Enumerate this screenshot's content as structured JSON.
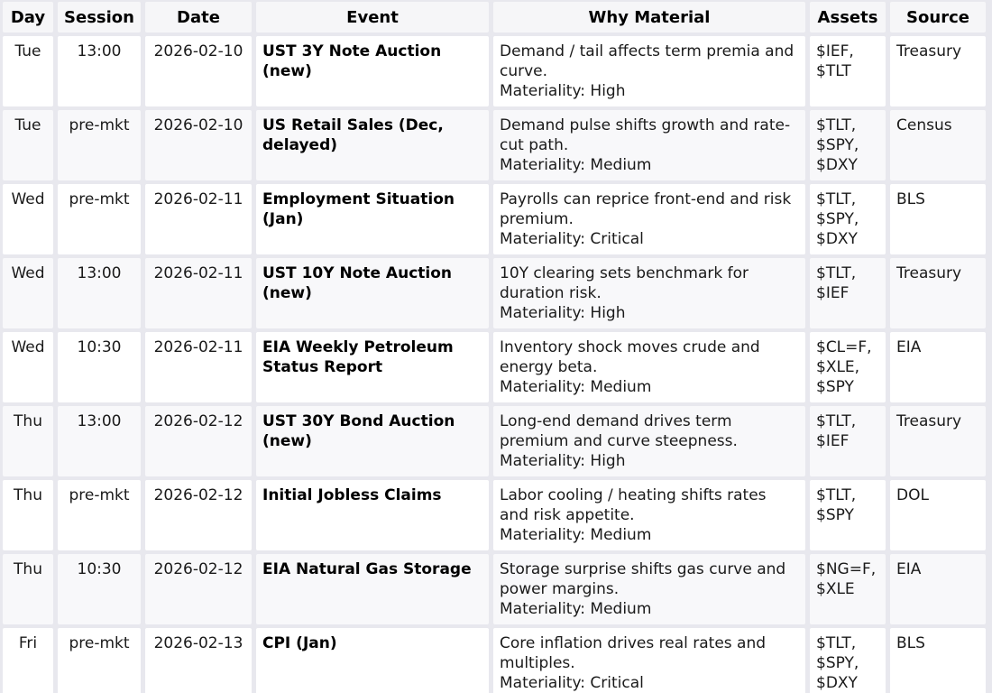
{
  "colors": {
    "page_gap_background": "#e8e8ee",
    "header_cell_background": "#f6f6f8",
    "row_background": "#ffffff",
    "row_alt_background": "#f8f8fa",
    "text": "#1a1a1a"
  },
  "table": {
    "columns": [
      "Day",
      "Session",
      "Date",
      "Event",
      "Why Material",
      "Assets",
      "Source"
    ],
    "rows": [
      {
        "day": "Tue",
        "session": "13:00",
        "date": "2026-02-10",
        "event": "UST 3Y Note Auction (new)",
        "why": "Demand / tail affects term premia and curve.",
        "materiality": "Materiality: High",
        "assets": [
          "$IEF",
          "$TLT"
        ],
        "source": "Treasury"
      },
      {
        "day": "Tue",
        "session": "pre-mkt",
        "date": "2026-02-10",
        "event": "US Retail Sales (Dec, delayed)",
        "why": "Demand pulse shifts growth and rate-cut path.",
        "materiality": "Materiality: Medium",
        "assets": [
          "$TLT",
          "$SPY",
          "$DXY"
        ],
        "source": "Census"
      },
      {
        "day": "Wed",
        "session": "pre-mkt",
        "date": "2026-02-11",
        "event": "Employment Situation (Jan)",
        "why": "Payrolls can reprice front-end and risk premium.",
        "materiality": "Materiality: Critical",
        "assets": [
          "$TLT",
          "$SPY",
          "$DXY"
        ],
        "source": "BLS"
      },
      {
        "day": "Wed",
        "session": "13:00",
        "date": "2026-02-11",
        "event": "UST 10Y Note Auction (new)",
        "why": "10Y clearing sets benchmark for duration risk.",
        "materiality": "Materiality: High",
        "assets": [
          "$TLT",
          "$IEF"
        ],
        "source": "Treasury"
      },
      {
        "day": "Wed",
        "session": "10:30",
        "date": "2026-02-11",
        "event": "EIA Weekly Petroleum Status Report",
        "why": "Inventory shock moves crude and energy beta.",
        "materiality": "Materiality: Medium",
        "assets": [
          "$CL=F",
          "$XLE",
          "$SPY"
        ],
        "source": "EIA"
      },
      {
        "day": "Thu",
        "session": "13:00",
        "date": "2026-02-12",
        "event": "UST 30Y Bond Auction (new)",
        "why": "Long-end demand drives term premium and curve steepness.",
        "materiality": "Materiality: High",
        "assets": [
          "$TLT",
          "$IEF"
        ],
        "source": "Treasury"
      },
      {
        "day": "Thu",
        "session": "pre-mkt",
        "date": "2026-02-12",
        "event": "Initial Jobless Claims",
        "why": "Labor cooling / heating shifts rates and risk appetite.",
        "materiality": "Materiality: Medium",
        "assets": [
          "$TLT",
          "$SPY"
        ],
        "source": "DOL"
      },
      {
        "day": "Thu",
        "session": "10:30",
        "date": "2026-02-12",
        "event": "EIA Natural Gas Storage",
        "why": "Storage surprise shifts gas curve and power margins.",
        "materiality": "Materiality: Medium",
        "assets": [
          "$NG=F",
          "$XLE"
        ],
        "source": "EIA"
      },
      {
        "day": "Fri",
        "session": "pre-mkt",
        "date": "2026-02-13",
        "event": "CPI (Jan)",
        "why": "Core inflation drives real rates and multiples.",
        "materiality": "Materiality: Critical",
        "assets": [
          "$TLT",
          "$SPY",
          "$DXY"
        ],
        "source": "BLS"
      }
    ]
  }
}
